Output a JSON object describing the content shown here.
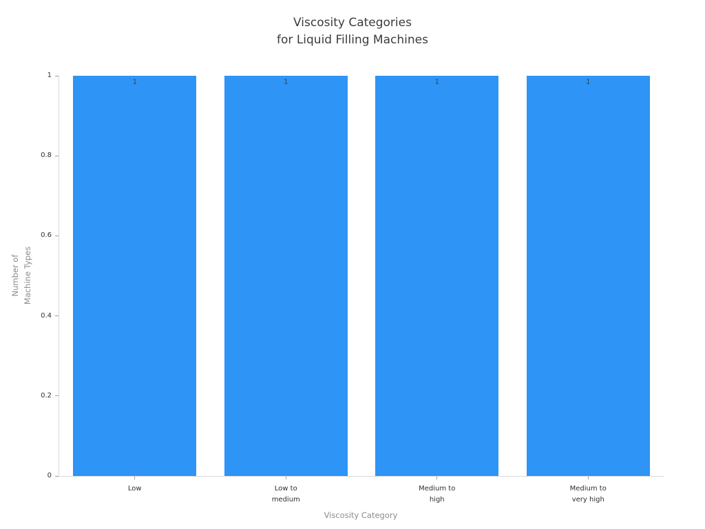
{
  "chart_data": {
    "type": "bar",
    "title": "Viscosity Categories\nfor Liquid Filling Machines",
    "xlabel": "Viscosity Category",
    "ylabel": "Number of\nMachine Types",
    "categories": [
      "Low",
      "Low to\nmedium",
      "Medium to\nhigh",
      "Medium to\nvery high"
    ],
    "values": [
      1,
      1,
      1,
      1
    ],
    "bar_value_labels": [
      "1",
      "1",
      "1",
      "1"
    ],
    "ylim": [
      0,
      1
    ],
    "yticks": [
      "0",
      "0.2",
      "0.4",
      "0.6",
      "0.8",
      "1"
    ],
    "grid": false,
    "legend_position": "none",
    "bar_color": "#2e94f5"
  }
}
